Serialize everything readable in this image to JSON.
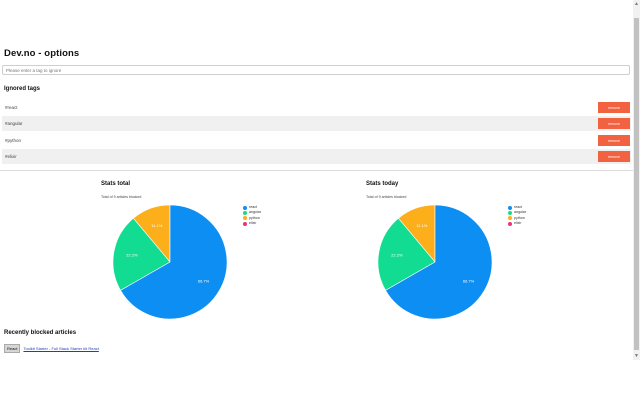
{
  "page": {
    "title": "Dev.no - options"
  },
  "search": {
    "placeholder": "Please enter a tag to ignore"
  },
  "ignored": {
    "heading": "Ignored tags",
    "tags": [
      {
        "name": "#react",
        "button": "remove"
      },
      {
        "name": "#angular",
        "button": "remove"
      },
      {
        "name": "#python",
        "button": "remove"
      },
      {
        "name": "#elixir",
        "button": "remove"
      }
    ]
  },
  "charts": [
    {
      "title": "Stats total",
      "subtitle": "Total of 9 articles blocked",
      "slice_labels": [
        "66.7%",
        "22.2%",
        "11.1%"
      ]
    },
    {
      "title": "Stats today",
      "subtitle": "Total of 9 articles blocked",
      "slice_labels": [
        "66.7%",
        "22.2%",
        "11.1%"
      ]
    }
  ],
  "chart_data": [
    {
      "type": "pie",
      "title": "Stats total",
      "categories": [
        "react",
        "angular",
        "python",
        "elixir"
      ],
      "values": [
        66.7,
        22.2,
        11.1,
        0
      ],
      "colors": [
        "#0d8ef2",
        "#12dc91",
        "#fcae1b",
        "#ee3468"
      ],
      "legend_position": "top-right"
    },
    {
      "type": "pie",
      "title": "Stats today",
      "categories": [
        "react",
        "angular",
        "python",
        "elixir"
      ],
      "values": [
        66.7,
        22.2,
        11.1,
        0
      ],
      "colors": [
        "#0d8ef2",
        "#12dc91",
        "#fcae1b",
        "#ee3468"
      ],
      "legend_position": "top-right"
    }
  ],
  "recent": {
    "heading": "Recently blocked articles",
    "items": [
      {
        "tag": "React",
        "title": "Toolkit Starter - Full Stack Starter kit React"
      }
    ]
  },
  "icons": {
    "scroll_up": "triangle-up-icon",
    "scroll_down": "triangle-down-icon"
  },
  "colors": {
    "accent": "#f26140",
    "link": "#1a3fbf"
  }
}
